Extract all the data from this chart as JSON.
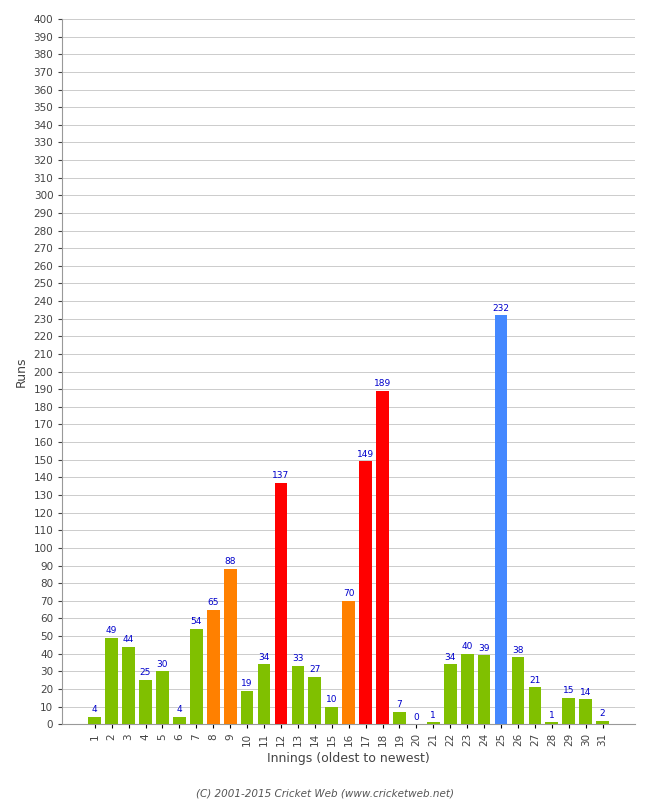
{
  "xlabel": "Innings (oldest to newest)",
  "ylabel": "Runs",
  "innings": [
    1,
    2,
    3,
    4,
    5,
    6,
    7,
    8,
    9,
    10,
    11,
    12,
    13,
    14,
    15,
    16,
    17,
    18,
    19,
    20,
    21,
    22,
    23,
    24,
    25,
    26,
    27,
    28,
    29,
    30,
    31
  ],
  "values": [
    4,
    49,
    44,
    25,
    30,
    4,
    54,
    65,
    88,
    19,
    34,
    137,
    33,
    27,
    10,
    70,
    149,
    189,
    7,
    0,
    1,
    34,
    40,
    39,
    232,
    38,
    21,
    1,
    15,
    14,
    2
  ],
  "colors": [
    "#80c000",
    "#80c000",
    "#80c000",
    "#80c000",
    "#80c000",
    "#80c000",
    "#80c000",
    "#ff8000",
    "#ff8000",
    "#80c000",
    "#80c000",
    "#ff0000",
    "#80c000",
    "#80c000",
    "#80c000",
    "#ff8000",
    "#ff0000",
    "#ff0000",
    "#80c000",
    "#80c000",
    "#80c000",
    "#80c000",
    "#80c000",
    "#80c000",
    "#4488ff",
    "#80c000",
    "#80c000",
    "#80c000",
    "#80c000",
    "#80c000",
    "#80c000"
  ],
  "ylim": [
    0,
    400
  ],
  "yticks": [
    0,
    10,
    20,
    30,
    40,
    50,
    60,
    70,
    80,
    90,
    100,
    110,
    120,
    130,
    140,
    150,
    160,
    170,
    180,
    190,
    200,
    210,
    220,
    230,
    240,
    250,
    260,
    270,
    280,
    290,
    300,
    310,
    320,
    330,
    340,
    350,
    360,
    370,
    380,
    390,
    400
  ],
  "footer": "(C) 2001-2015 Cricket Web (www.cricketweb.net)",
  "bg_color": "#ffffff",
  "grid_color": "#cccccc",
  "label_color": "#0000cc",
  "tick_label_color": "#444444",
  "axis_label_color": "#444444"
}
